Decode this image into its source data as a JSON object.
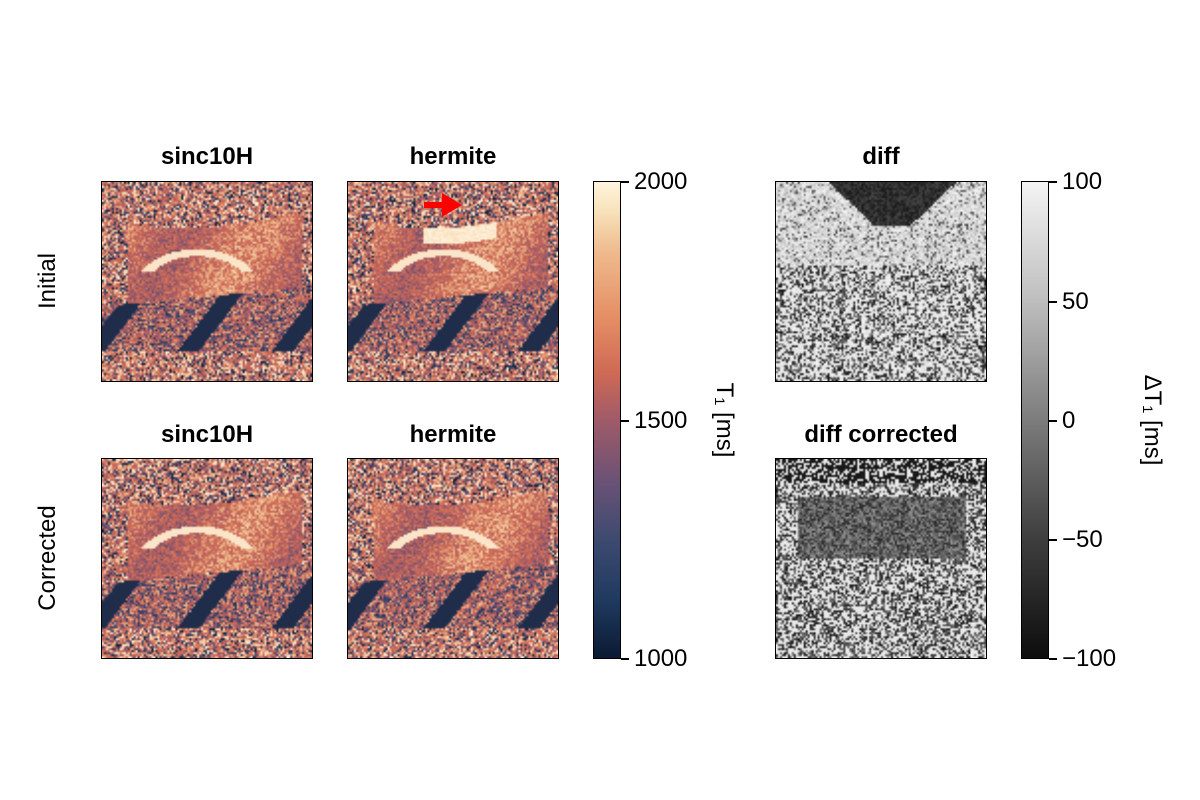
{
  "panels": {
    "initial_sinc_title": "sinc10H",
    "initial_hermite_title": "hermite",
    "corrected_sinc_title": "sinc10H",
    "corrected_hermite_title": "hermite",
    "diff_title": "diff",
    "diff_corrected_title": "diff corrected"
  },
  "rows": {
    "initial": "Initial",
    "corrected": "Corrected"
  },
  "colorbar_t1": {
    "label": "T₁ [ms]",
    "ticks": [
      "2000",
      "1500",
      "1000"
    ],
    "range": [
      1000,
      2000
    ],
    "colormap": [
      "#0b1a33",
      "#3e4a70",
      "#a05a68",
      "#cf6a55",
      "#eeb98c",
      "#fff4dd"
    ]
  },
  "colorbar_diff": {
    "label": "ΔT₁ [ms]",
    "ticks": [
      "100",
      "50",
      "0",
      "−50",
      "−100"
    ],
    "range": [
      -100,
      100
    ],
    "colormap": [
      "#0d0d0d",
      "#f4f4f4"
    ]
  },
  "annotation": {
    "arrow_color": "#ff0000",
    "arrow_icon": "right-arrow-icon"
  }
}
